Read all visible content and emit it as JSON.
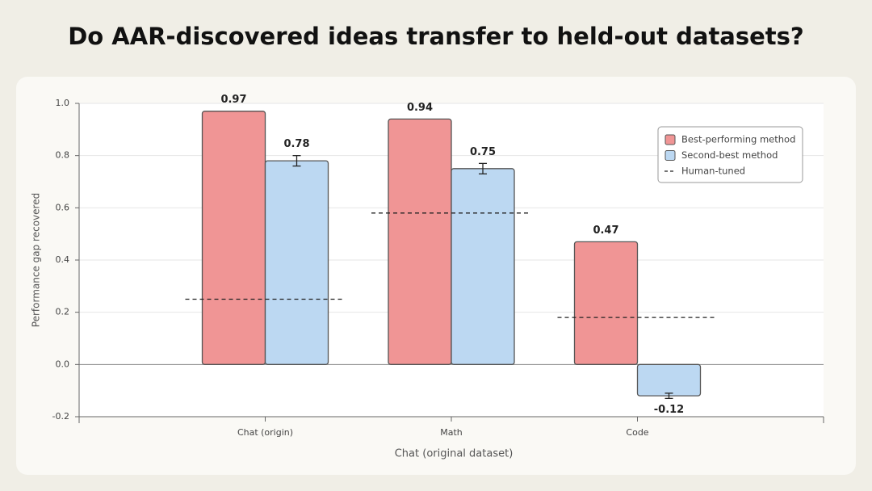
{
  "chart_data": {
    "type": "bar",
    "title": "Do AAR-discovered ideas transfer to held-out datasets?",
    "x_label": "Chat (original dataset)",
    "y_label": "Performance gap recovered",
    "categories": [
      "Chat (origin)",
      "Math",
      "Code"
    ],
    "series": [
      {
        "name": "Best-performing method",
        "color": "#f09595",
        "values": [
          0.97,
          0.94,
          0.47
        ]
      },
      {
        "name": "Second-best method",
        "color": "#bcd8f2",
        "values": [
          0.78,
          0.75,
          -0.12
        ],
        "errors": [
          0.02,
          0.02,
          0.01
        ]
      },
      {
        "name": "Human-tuned",
        "color": "#222222",
        "type": "reference",
        "values": [
          0.25,
          0.58,
          0.18
        ]
      }
    ],
    "ylim": [
      -0.2,
      1.0
    ],
    "yticks": [
      {
        "value": -0.2,
        "label": "-0.2"
      },
      {
        "value": 0,
        "label": "0.0"
      },
      0.2,
      0.4,
      0.6,
      0.8,
      {
        "value": 1,
        "label": "1.0"
      }
    ],
    "grid": true,
    "legend": "upper right"
  }
}
